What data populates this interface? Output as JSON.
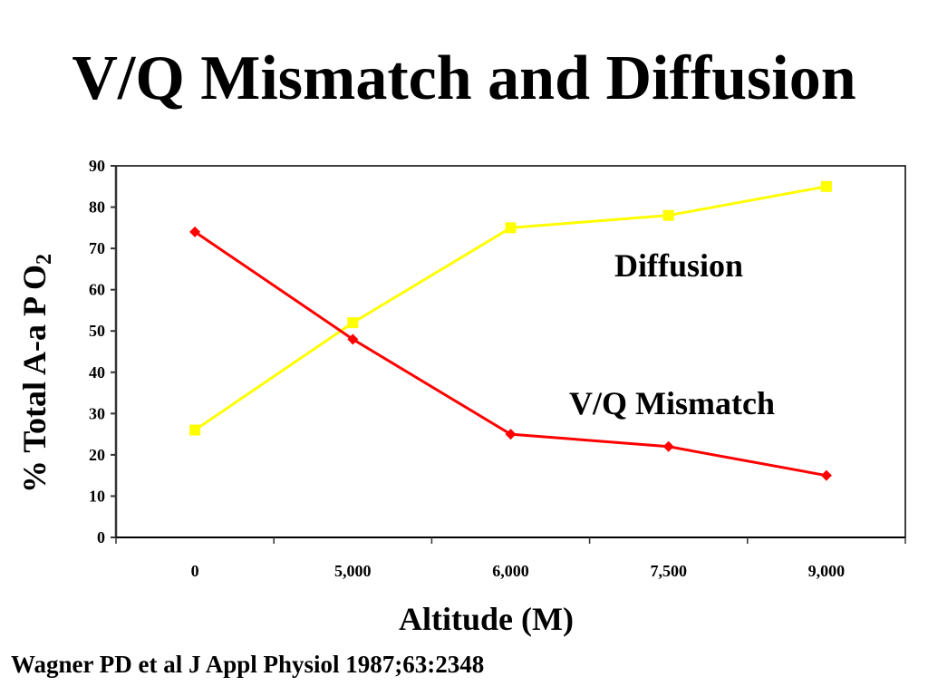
{
  "slide": {
    "title": "V/Q Mismatch and Diffusion",
    "citation": "Wagner PD et al J Appl Physiol 1987;63:2348"
  },
  "chart_data": {
    "type": "line",
    "title": "V/Q Mismatch and Diffusion",
    "xlabel": "Altitude (M)",
    "ylabel_main": "% Total A-a P O",
    "ylabel_sub": "2",
    "categories": [
      "0",
      "5,000",
      "6,000",
      "7,500",
      "9,000"
    ],
    "ylim": [
      0,
      90
    ],
    "yticks": [
      0,
      10,
      20,
      30,
      40,
      50,
      60,
      70,
      80,
      90
    ],
    "grid": false,
    "legend": "inline-labels",
    "series": [
      {
        "name": "Diffusion",
        "color": "#FFFF00",
        "marker": "square",
        "values": [
          26,
          52,
          75,
          78,
          85
        ],
        "label": "Diffusion"
      },
      {
        "name": "V/Q Mismatch",
        "color": "#FF0000",
        "marker": "diamond",
        "values": [
          74,
          48,
          25,
          22,
          15
        ],
        "label": "V/Q Mismatch"
      }
    ]
  }
}
